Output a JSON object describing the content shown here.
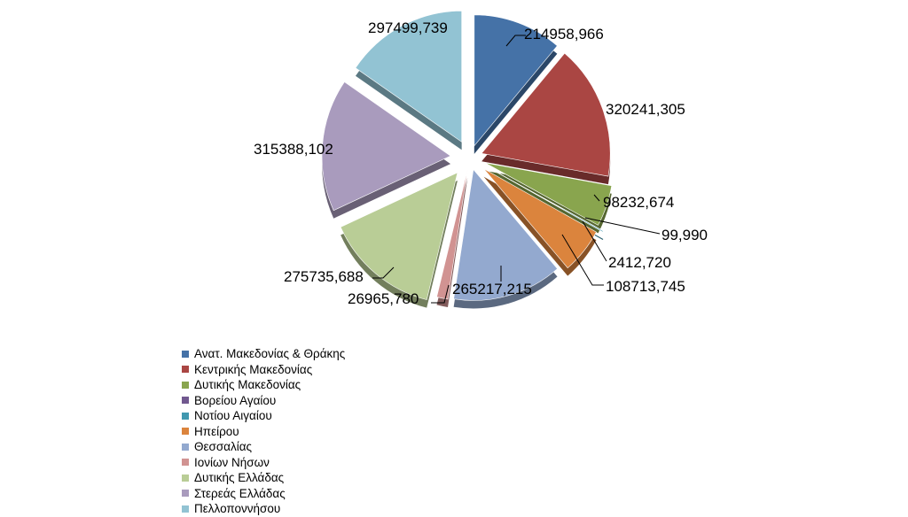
{
  "chart_data": {
    "type": "pie",
    "title": "",
    "legend_position": "bottom-left",
    "three_d": true,
    "exploded": true,
    "slices": [
      {
        "name": "Ανατ. Μακεδονίας & Θράκης",
        "value": 214958.966,
        "label": "214958,966",
        "color": "#4572A7"
      },
      {
        "name": "Κεντρικής Μακεδονίας",
        "value": 320241.305,
        "label": "320241,305",
        "color": "#AA4643"
      },
      {
        "name": "Δυτικής Μακεδονίας",
        "value": 98232.674,
        "label": "98232,674",
        "color": "#89A54E"
      },
      {
        "name": "Βορείου Αγαίου",
        "value": 99.99,
        "label": "99,990",
        "color": "#71588F"
      },
      {
        "name": "Νοτίου Αιγαίου",
        "value": 2412.72,
        "label": "2412,720",
        "color": "#4198AF"
      },
      {
        "name": "Ηπείρου",
        "value": 108713.745,
        "label": "108713,745",
        "color": "#DB843D"
      },
      {
        "name": "Θεσσαλίας",
        "value": 265217.215,
        "label": "265217,215",
        "color": "#93A9CF"
      },
      {
        "name": "Ιονίων  Νήσων",
        "value": 26965.78,
        "label": "26965,780",
        "color": "#D19392"
      },
      {
        "name": "Δυτικής Ελλάδας",
        "value": 275735.688,
        "label": "275735,688",
        "color": "#B9CD96"
      },
      {
        "name": "Στερεάς Ελλάδας",
        "value": 315388.102,
        "label": "315388,102",
        "color": "#A99BBD"
      },
      {
        "name": "Πελλοποννήσου",
        "value": 297499.739,
        "label": "297499,739",
        "color": "#92C3D3"
      }
    ]
  }
}
